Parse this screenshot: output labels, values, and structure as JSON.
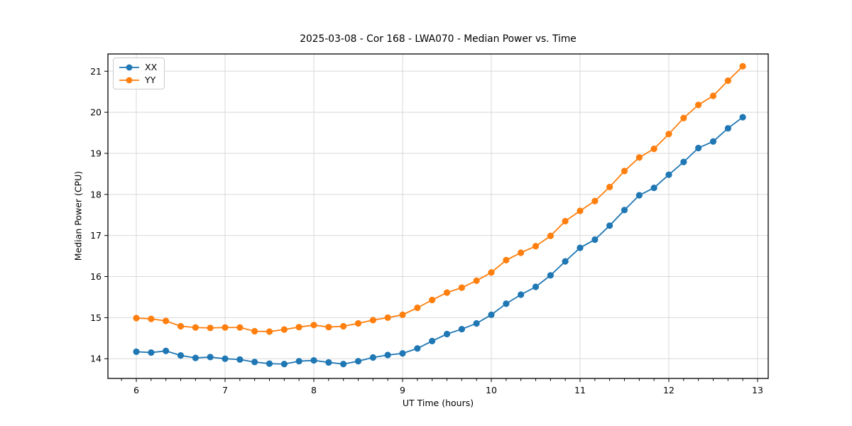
{
  "colors": {
    "xx_series": "#1f77b4",
    "yy_series": "#ff7f0e",
    "grid": "#d8d8d8",
    "spine": "#000000"
  },
  "chart_data": {
    "type": "line",
    "title": "2025-03-08 - Cor 168 - LWA070 - Median Power vs. Time",
    "xlabel": "UT Time (hours)",
    "ylabel": "Median Power (CPU)",
    "xlim": [
      5.68,
      13.12
    ],
    "ylim": [
      13.52,
      21.42
    ],
    "xticks": [
      6,
      7,
      8,
      9,
      10,
      11,
      12,
      13
    ],
    "yticks": [
      14,
      15,
      16,
      17,
      18,
      19,
      20,
      21
    ],
    "x_minor_tick_step_hours": 0.1667,
    "grid": true,
    "legend_position": "upper-left",
    "marker": "circle",
    "x": [
      6.0,
      6.167,
      6.333,
      6.5,
      6.667,
      6.833,
      7.0,
      7.167,
      7.333,
      7.5,
      7.667,
      7.833,
      8.0,
      8.167,
      8.333,
      8.5,
      8.667,
      8.833,
      9.0,
      9.167,
      9.333,
      9.5,
      9.667,
      9.833,
      10.0,
      10.167,
      10.333,
      10.5,
      10.667,
      10.833,
      11.0,
      11.167,
      11.333,
      11.5,
      11.667,
      11.833,
      12.0,
      12.167,
      12.333,
      12.5,
      12.667,
      12.833
    ],
    "series": [
      {
        "name": "XX",
        "color": "#1f77b4",
        "values": [
          14.17,
          14.15,
          14.19,
          14.08,
          14.02,
          14.04,
          14.0,
          13.98,
          13.92,
          13.88,
          13.87,
          13.94,
          13.96,
          13.91,
          13.87,
          13.94,
          14.03,
          14.09,
          14.13,
          14.25,
          14.43,
          14.6,
          14.72,
          14.86,
          15.07,
          15.34,
          15.56,
          15.75,
          16.03,
          16.37,
          16.7,
          16.9,
          17.24,
          17.62,
          17.98,
          18.16,
          18.48,
          18.79,
          19.13,
          19.29,
          19.61,
          19.88
        ]
      },
      {
        "name": "YY",
        "color": "#ff7f0e",
        "values": [
          14.99,
          14.97,
          14.92,
          14.79,
          14.76,
          14.75,
          14.76,
          14.76,
          14.67,
          14.66,
          14.71,
          14.77,
          14.82,
          14.77,
          14.79,
          14.86,
          14.94,
          15.0,
          15.07,
          15.24,
          15.43,
          15.61,
          15.73,
          15.9,
          16.1,
          16.4,
          16.58,
          16.74,
          16.99,
          17.35,
          17.6,
          17.84,
          18.18,
          18.57,
          18.9,
          19.11,
          19.47,
          19.86,
          20.18,
          20.4,
          20.77,
          21.12
        ]
      }
    ]
  }
}
